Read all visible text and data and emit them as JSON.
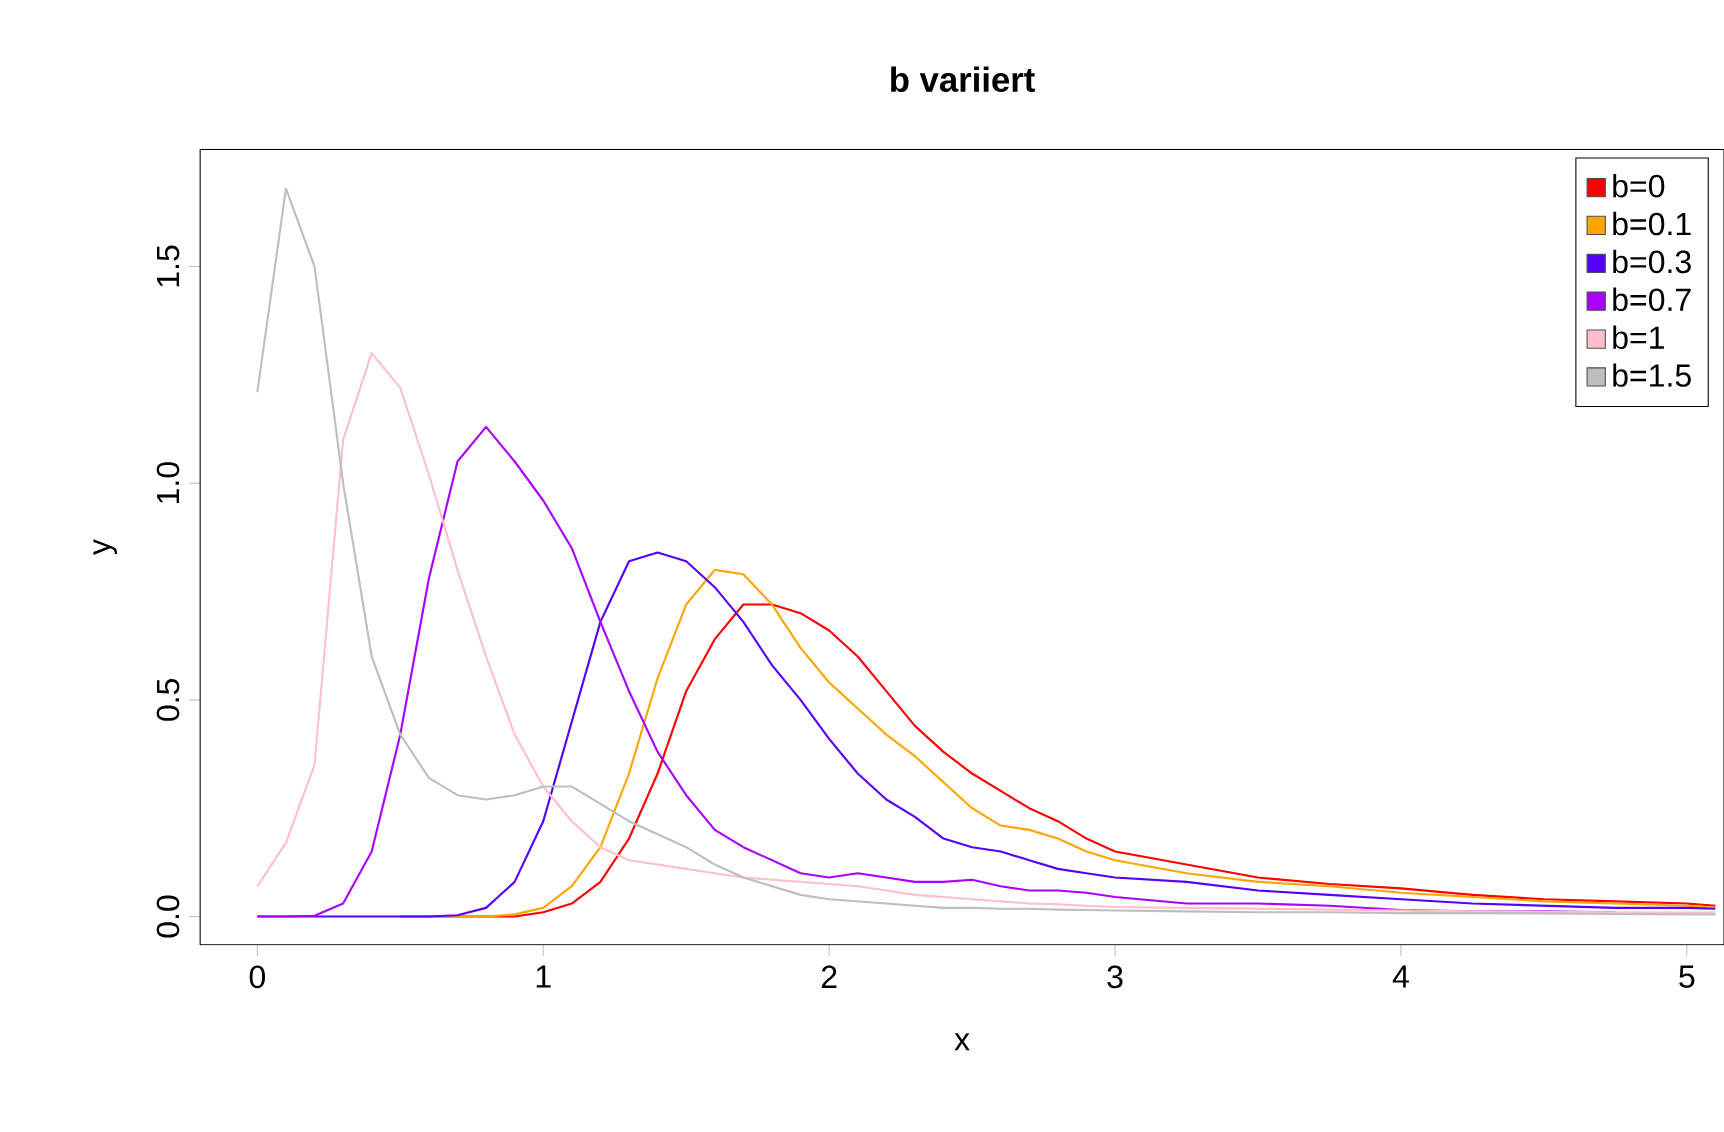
{
  "chart_data": {
    "type": "line",
    "title": "b variiert",
    "xlabel": "x",
    "ylabel": "y",
    "x": [
      0,
      0.1,
      0.2,
      0.3,
      0.4,
      0.5,
      0.6,
      0.7,
      0.8,
      0.9,
      1.0,
      1.1,
      1.2,
      1.3,
      1.4,
      1.5,
      1.6,
      1.7,
      1.8,
      1.9,
      2.0,
      2.1,
      2.2,
      2.3,
      2.4,
      2.5,
      2.6,
      2.7,
      2.8,
      2.9,
      3.0,
      3.25,
      3.5,
      3.75,
      4.0,
      4.25,
      4.5,
      4.75,
      5.0,
      5.1
    ],
    "xlim": [
      -0.2,
      5.13
    ],
    "ylim": [
      -0.065,
      1.77
    ],
    "xticks": [
      0,
      1,
      2,
      3,
      4,
      5
    ],
    "yticks": [
      {
        "value": 0,
        "label": "0.0"
      },
      {
        "value": 0.5,
        "label": "0.5"
      },
      {
        "value": 1,
        "label": "1.0"
      },
      {
        "value": 1.5,
        "label": "1.5"
      }
    ],
    "legend": "top right",
    "grid": false,
    "marker": "none",
    "line_style": "solid",
    "series": [
      {
        "name": "b=0",
        "color": "#ff0000",
        "values": [
          null,
          null,
          null,
          null,
          null,
          0,
          0,
          0,
          0,
          0,
          0.01,
          0.03,
          0.08,
          0.18,
          0.33,
          0.52,
          0.64,
          0.72,
          0.72,
          0.7,
          0.66,
          0.6,
          0.52,
          0.44,
          0.38,
          0.33,
          0.29,
          0.25,
          0.22,
          0.18,
          0.15,
          0.12,
          0.09,
          0.075,
          0.065,
          0.05,
          0.04,
          0.035,
          0.03,
          0.025
        ]
      },
      {
        "name": "b=0.1",
        "color": "#ffa500",
        "values": [
          null,
          null,
          null,
          null,
          null,
          null,
          0,
          0,
          0,
          0.005,
          0.02,
          0.07,
          0.16,
          0.33,
          0.55,
          0.72,
          0.8,
          0.79,
          0.72,
          0.62,
          0.54,
          0.48,
          0.42,
          0.37,
          0.31,
          0.25,
          0.21,
          0.2,
          0.18,
          0.15,
          0.13,
          0.1,
          0.08,
          0.07,
          0.055,
          0.045,
          0.035,
          0.03,
          0.025,
          0.02
        ]
      },
      {
        "name": "b=0.3",
        "color": "#5500ff",
        "values": [
          0,
          0,
          0,
          0,
          0,
          0,
          0,
          0.003,
          0.02,
          0.08,
          0.22,
          0.45,
          0.68,
          0.82,
          0.84,
          0.82,
          0.76,
          0.68,
          0.58,
          0.5,
          0.41,
          0.33,
          0.27,
          0.23,
          0.18,
          0.16,
          0.15,
          0.13,
          0.11,
          0.1,
          0.09,
          0.08,
          0.06,
          0.05,
          0.04,
          0.03,
          0.025,
          0.02,
          0.02,
          0.018
        ]
      },
      {
        "name": "b=0.7",
        "color": "#aa00ff",
        "values": [
          0,
          0,
          0.002,
          0.03,
          0.15,
          0.42,
          0.78,
          1.05,
          1.13,
          1.05,
          0.96,
          0.85,
          0.68,
          0.52,
          0.38,
          0.28,
          0.2,
          0.16,
          0.13,
          0.1,
          0.09,
          0.1,
          0.09,
          0.08,
          0.08,
          0.085,
          0.07,
          0.06,
          0.06,
          0.055,
          0.045,
          0.03,
          0.03,
          0.025,
          0.015,
          0.012,
          0.012,
          0.01,
          null,
          null
        ]
      },
      {
        "name": "b=1",
        "color": "#ffc0cb",
        "values": [
          0.07,
          0.17,
          0.35,
          1.1,
          1.3,
          1.22,
          1.02,
          0.8,
          0.6,
          0.42,
          0.3,
          0.22,
          0.16,
          0.13,
          0.12,
          0.11,
          0.1,
          0.09,
          0.085,
          0.08,
          0.075,
          0.07,
          0.06,
          0.05,
          0.045,
          0.04,
          0.035,
          0.03,
          0.028,
          0.025,
          0.022,
          0.02,
          0.018,
          0.016,
          0.014,
          0.012,
          0.011,
          0.01,
          0.009,
          0.009
        ]
      },
      {
        "name": "b=1.5",
        "color": "#bebebe",
        "values": [
          1.21,
          1.68,
          1.5,
          1.0,
          0.6,
          0.42,
          0.32,
          0.28,
          0.27,
          0.28,
          0.3,
          0.3,
          0.26,
          0.22,
          0.19,
          0.16,
          0.12,
          0.09,
          0.07,
          0.05,
          0.04,
          0.035,
          0.03,
          0.025,
          0.02,
          0.02,
          0.018,
          0.018,
          0.016,
          0.015,
          0.014,
          0.012,
          0.01,
          0.01,
          0.008,
          0.008,
          0.007,
          0.006,
          0.005,
          0.005
        ]
      }
    ]
  }
}
